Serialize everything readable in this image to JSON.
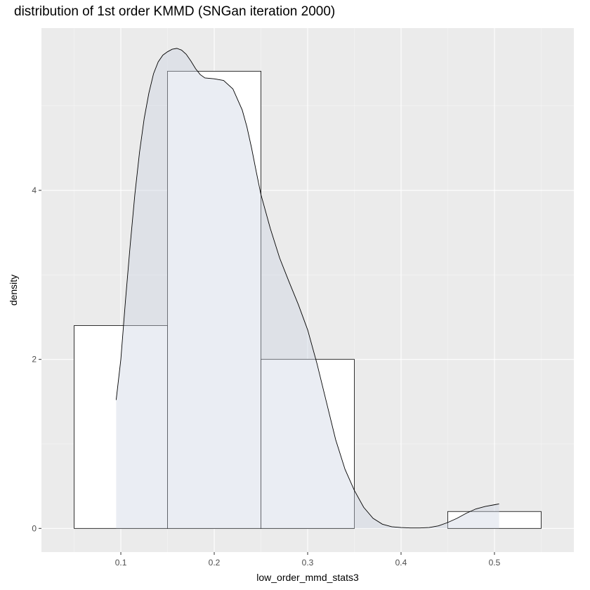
{
  "chart_data": {
    "type": "histogram",
    "title": "distribution of 1st order KMMD (SNGan iteration 2000)",
    "xlabel": "low_order_mmd_stats3",
    "ylabel": "density",
    "xlim": [
      0.015,
      0.585
    ],
    "ylim": [
      -0.28,
      5.92
    ],
    "x_ticks": [
      0.1,
      0.2,
      0.3,
      0.4,
      0.5
    ],
    "x_tick_labels": [
      "0.1",
      "0.2",
      "0.3",
      "0.4",
      "0.5"
    ],
    "y_ticks": [
      0,
      2,
      4
    ],
    "y_tick_labels": [
      "0",
      "2",
      "4"
    ],
    "grid": true,
    "bins": [
      {
        "xmin": 0.05,
        "xmax": 0.15,
        "density": 2.4
      },
      {
        "xmin": 0.15,
        "xmax": 0.25,
        "density": 5.41
      },
      {
        "xmin": 0.25,
        "xmax": 0.35,
        "density": 2.0
      },
      {
        "xmin": 0.35,
        "xmax": 0.45,
        "density": 0.0
      },
      {
        "xmin": 0.45,
        "xmax": 0.55,
        "density": 0.2
      }
    ],
    "density_curve": {
      "x": [
        0.095,
        0.1,
        0.105,
        0.11,
        0.115,
        0.12,
        0.125,
        0.13,
        0.135,
        0.14,
        0.145,
        0.15,
        0.155,
        0.16,
        0.165,
        0.17,
        0.175,
        0.18,
        0.185,
        0.19,
        0.2,
        0.21,
        0.22,
        0.23,
        0.235,
        0.24,
        0.245,
        0.25,
        0.26,
        0.27,
        0.28,
        0.29,
        0.3,
        0.31,
        0.32,
        0.33,
        0.34,
        0.35,
        0.36,
        0.37,
        0.38,
        0.39,
        0.4,
        0.41,
        0.42,
        0.43,
        0.44,
        0.45,
        0.46,
        0.47,
        0.48,
        0.49,
        0.5,
        0.505
      ],
      "y": [
        1.52,
        2.0,
        2.7,
        3.35,
        3.95,
        4.45,
        4.85,
        5.15,
        5.38,
        5.52,
        5.6,
        5.64,
        5.67,
        5.68,
        5.66,
        5.61,
        5.53,
        5.44,
        5.37,
        5.33,
        5.32,
        5.3,
        5.2,
        4.95,
        4.75,
        4.5,
        4.22,
        3.95,
        3.55,
        3.2,
        2.92,
        2.65,
        2.35,
        1.95,
        1.5,
        1.05,
        0.7,
        0.45,
        0.25,
        0.12,
        0.05,
        0.02,
        0.01,
        0.005,
        0.005,
        0.01,
        0.03,
        0.07,
        0.12,
        0.18,
        0.23,
        0.26,
        0.28,
        0.29
      ]
    },
    "colors": {
      "panel_background": "#ebebeb",
      "grid_major": "#ffffff",
      "grid_minor": "#f5f5f5",
      "bar_fill": "#ffffff",
      "bar_outline": "#000000",
      "density_fill": "#cad2e0",
      "density_line": "#000000",
      "tick_text": "#4d4d4d"
    }
  }
}
